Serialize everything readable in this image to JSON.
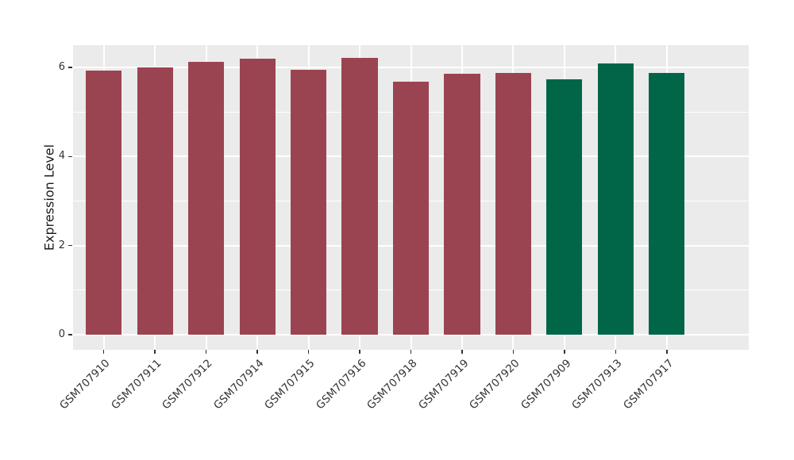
{
  "chart_data": {
    "type": "bar",
    "title": "",
    "xlabel": "",
    "ylabel": "Expression Level",
    "categories": [
      "GSM707910",
      "GSM707911",
      "GSM707912",
      "GSM707914",
      "GSM707915",
      "GSM707916",
      "GSM707918",
      "GSM707919",
      "GSM707920",
      "GSM707909",
      "GSM707913",
      "GSM707917"
    ],
    "values": [
      5.93,
      6.01,
      6.13,
      6.19,
      5.94,
      6.21,
      5.68,
      5.86,
      5.88,
      5.73,
      6.09,
      5.87
    ],
    "bar_group_index": [
      0,
      0,
      0,
      0,
      0,
      0,
      0,
      0,
      0,
      1,
      1,
      1
    ],
    "group_colors": [
      "#9B4451",
      "#006647"
    ],
    "yticks": [
      0,
      2,
      4,
      6
    ],
    "ytick_labels": [
      "0",
      "2",
      "4",
      "6"
    ],
    "minor_yticks": [
      1,
      3,
      5
    ],
    "ylim": [
      -0.34,
      6.5
    ],
    "legend": "none",
    "grid": "white major and minor horizontal lines; white vertical lines at category centers",
    "panel_bg": "#EBEBEB",
    "grid_color": "#FFFFFF",
    "tick_color": "#333333",
    "tick_label_color": "#333333",
    "bar_width_fraction": 0.7,
    "x_expand_slots": 0.6
  }
}
